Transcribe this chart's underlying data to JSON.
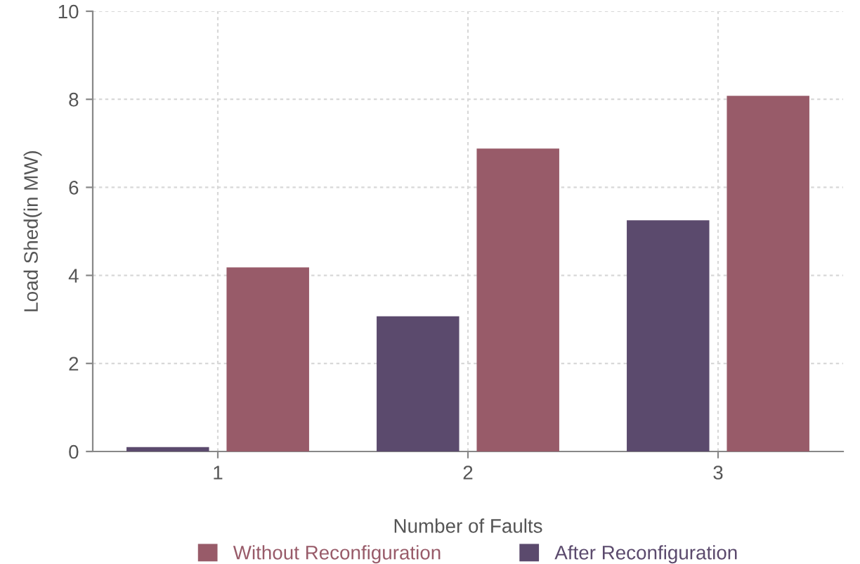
{
  "chart_data": {
    "type": "bar",
    "xlabel": "Number of Faults",
    "ylabel": "Load Shed(in MW)",
    "categories": [
      "1",
      "2",
      "3"
    ],
    "series": [
      {
        "name": "After Reconfiguration",
        "color": "#5b4a6d",
        "values": [
          0.1,
          3.07,
          5.25
        ]
      },
      {
        "name": "Without Reconfiguration",
        "color": "#985b69",
        "values": [
          4.18,
          6.88,
          8.08
        ]
      }
    ],
    "ylim": [
      0,
      10
    ],
    "yticks": [
      0,
      2,
      4,
      6,
      8,
      10
    ],
    "grid": true,
    "legend": "bottom"
  }
}
